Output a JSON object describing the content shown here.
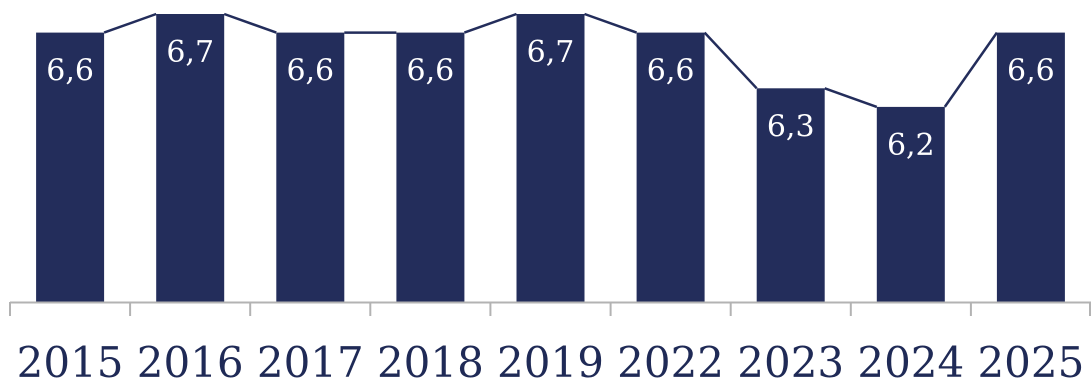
{
  "chart_data": {
    "type": "bar",
    "categories": [
      "2015",
      "2016",
      "2017",
      "2018",
      "2019",
      "2022",
      "2023",
      "2024",
      "2025"
    ],
    "values": [
      6.6,
      6.7,
      6.6,
      6.6,
      6.7,
      6.6,
      6.3,
      6.2,
      6.6
    ],
    "value_labels": [
      "6,6",
      "6,7",
      "6,6",
      "6,6",
      "6,7",
      "6,6",
      "6,3",
      "6,2",
      "6,6"
    ],
    "title": "",
    "xlabel": "",
    "ylabel": "",
    "ylim": [
      5.15,
      6.7
    ],
    "grid": false,
    "legend": "none",
    "connector_line": true,
    "colors": {
      "bar": "#232d5b",
      "label": "#ffffff",
      "axis": "#b3b3b3",
      "tick_text": "#1f2a56"
    }
  }
}
